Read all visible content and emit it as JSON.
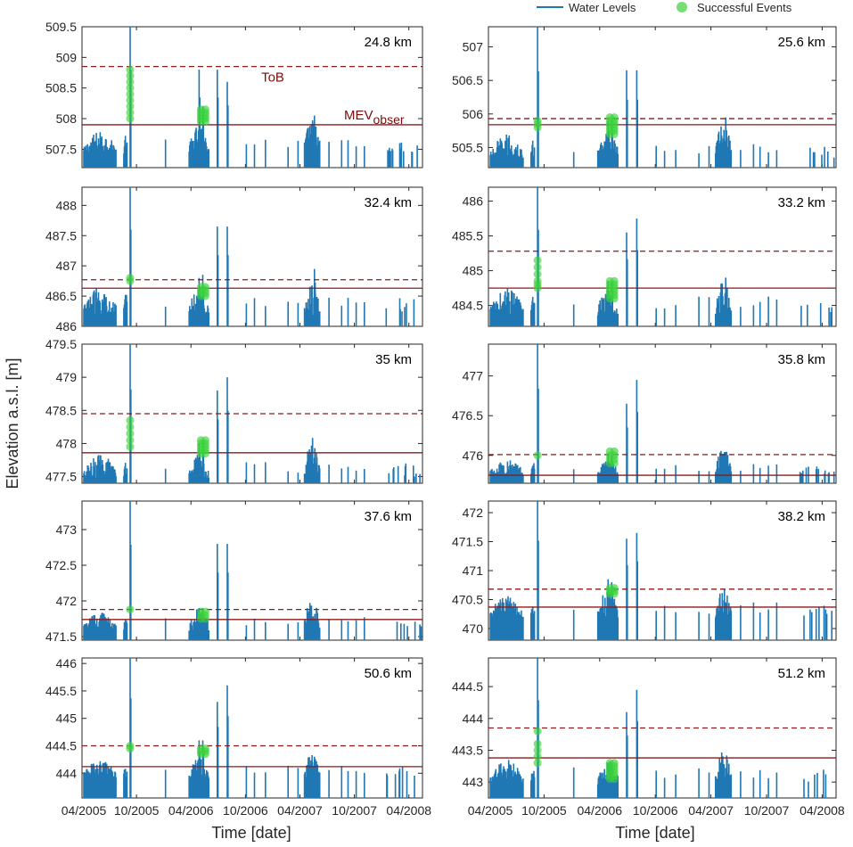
{
  "chart_data": {
    "type": "line",
    "legend": {
      "water_label": "Water Levels",
      "events_label": "Successful Events",
      "placement": "top-right"
    },
    "ylabel": "Elevation a.s.l. [m]",
    "xlabel": "Time [date]",
    "x_tick_labels": [
      "04/2005",
      "10/2005",
      "04/2006",
      "10/2006",
      "04/2007",
      "10/2007",
      "04/2008"
    ],
    "x_range_months": [
      0,
      37.5
    ],
    "annotations": {
      "tob": "ToB",
      "mev_main": "MEV",
      "mev_sub": "obser"
    },
    "colors": {
      "water": "#1f77b4",
      "events": "#3bd13b",
      "ref": "#8b1a1a"
    },
    "panels": [
      {
        "label": "24.8 km",
        "ylim": [
          507.2,
          509.5
        ],
        "yticks": [
          507.5,
          508,
          508.5,
          509,
          509.5
        ],
        "tob": 508.85,
        "mev": 507.9,
        "base_mean": 507.5,
        "base_var": 0.3,
        "mean2": 507.55,
        "var2": 0.35,
        "mean3": 507.6,
        "var3": 0.4,
        "spikes": [
          509.5,
          508.8,
          508.2,
          508.8,
          508.6,
          508.05
        ],
        "events": [
          {
            "x": 5.3,
            "y": [
              508.8,
              508.7,
              508.6,
              508.5,
              508.4,
              508.3,
              508.2,
              508.1,
              508.0
            ]
          },
          {
            "x": 13.1,
            "y": [
              508.15,
              508.1,
              508.05,
              508.0,
              507.95
            ]
          }
        ]
      },
      {
        "label": "25.6 km",
        "ylim": [
          505.2,
          507.3
        ],
        "yticks": [
          505.5,
          506,
          506.5,
          507
        ],
        "tob": 505.93,
        "mev": 505.84,
        "base_mean": 505.4,
        "base_var": 0.3,
        "mean2": 505.45,
        "var2": 0.3,
        "mean3": 505.5,
        "var3": 0.4,
        "spikes": [
          507.3,
          505.9,
          505.9,
          506.65,
          506.65,
          505.95
        ],
        "events": [
          {
            "x": 5.3,
            "y": [
              505.9,
              505.85,
              505.8
            ]
          },
          {
            "x": 13.1,
            "y": [
              505.95,
              505.9,
              505.85,
              505.8,
              505.75,
              505.7
            ]
          }
        ]
      },
      {
        "label": "32.4 km",
        "ylim": [
          486.0,
          488.3
        ],
        "yticks": [
          486,
          486.5,
          487,
          487.5,
          488
        ],
        "tob": 486.77,
        "mev": 486.63,
        "base_mean": 486.3,
        "base_var": 0.35,
        "mean2": 486.3,
        "var2": 0.4,
        "mean3": 486.3,
        "var3": 0.45,
        "spikes": [
          488.3,
          486.8,
          486.85,
          487.65,
          487.65,
          486.95
        ],
        "events": [
          {
            "x": 5.3,
            "y": [
              486.8,
              486.75
            ]
          },
          {
            "x": 13.1,
            "y": [
              486.65,
              486.6,
              486.55,
              486.5
            ]
          }
        ]
      },
      {
        "label": "33.2 km",
        "ylim": [
          484.2,
          486.2
        ],
        "yticks": [
          484.5,
          485,
          485.5,
          486
        ],
        "tob": 485.28,
        "mev": 484.75,
        "base_mean": 484.45,
        "base_var": 0.3,
        "mean2": 484.45,
        "var2": 0.35,
        "mean3": 484.45,
        "var3": 0.45,
        "spikes": [
          486.2,
          484.85,
          484.85,
          485.55,
          485.75,
          484.9
        ],
        "events": [
          {
            "x": 5.3,
            "y": [
              485.15,
              485.05,
              484.95,
              484.85,
              484.8,
              484.75
            ]
          },
          {
            "x": 13.1,
            "y": [
              484.85,
              484.8,
              484.75,
              484.7,
              484.65,
              484.6
            ]
          }
        ]
      },
      {
        "label": "35 km",
        "ylim": [
          477.4,
          479.5
        ],
        "yticks": [
          477.5,
          478,
          478.5,
          479,
          479.5
        ],
        "tob": 478.45,
        "mev": 477.86,
        "base_mean": 477.55,
        "base_var": 0.3,
        "mean2": 477.55,
        "var2": 0.3,
        "mean3": 477.6,
        "var3": 0.5,
        "spikes": [
          479.5,
          478.0,
          478.05,
          478.8,
          479.0,
          477.75
        ],
        "events": [
          {
            "x": 5.3,
            "y": [
              478.35,
              478.25,
              478.15,
              478.05,
              477.95
            ]
          },
          {
            "x": 13.1,
            "y": [
              478.05,
              478.0,
              477.95,
              477.9,
              477.85
            ]
          }
        ]
      },
      {
        "label": "35.8 km",
        "ylim": [
          475.65,
          477.4
        ],
        "yticks": [
          476,
          476.5,
          477
        ],
        "tob": 476.01,
        "mev": 475.75,
        "base_mean": 475.8,
        "base_var": 0.15,
        "mean2": 475.8,
        "var2": 0.15,
        "mean3": 475.85,
        "var3": 0.25,
        "spikes": [
          477.4,
          476.0,
          476.0,
          476.65,
          476.95,
          476.0
        ],
        "events": [
          {
            "x": 5.3,
            "y": [
              476.0
            ]
          },
          {
            "x": 13.1,
            "y": [
              476.05,
              476.0,
              475.95,
              475.9
            ]
          }
        ]
      },
      {
        "label": "37.6 km",
        "ylim": [
          471.45,
          473.4
        ],
        "yticks": [
          471.5,
          472,
          472.5,
          473
        ],
        "tob": 471.88,
        "mev": 471.74,
        "base_mean": 471.65,
        "base_var": 0.2,
        "mean2": 471.65,
        "var2": 0.25,
        "mean3": 471.7,
        "var3": 0.35,
        "spikes": [
          473.4,
          471.9,
          471.9,
          472.8,
          472.8,
          471.75
        ],
        "events": [
          {
            "x": 5.3,
            "y": [
              471.88
            ]
          },
          {
            "x": 13.1,
            "y": [
              471.85,
              471.8,
              471.75
            ]
          }
        ]
      },
      {
        "label": "38.2 km",
        "ylim": [
          469.8,
          472.2
        ],
        "yticks": [
          470,
          470.5,
          471,
          471.5,
          472
        ],
        "tob": 470.68,
        "mev": 470.37,
        "base_mean": 470.25,
        "base_var": 0.35,
        "mean2": 470.3,
        "var2": 0.4,
        "mean3": 470.3,
        "var3": 0.45,
        "spikes": [
          472.2,
          470.85,
          470.8,
          471.55,
          471.65,
          470.45
        ],
        "events": [
          {
            "x": 13.1,
            "y": [
              470.7,
              470.65,
              470.6
            ]
          }
        ]
      },
      {
        "label": "50.6 km",
        "ylim": [
          443.55,
          446.1
        ],
        "yticks": [
          444,
          444.5,
          445,
          445.5,
          446
        ],
        "tob": 444.5,
        "mev": 444.12,
        "base_mean": 444.0,
        "base_var": 0.25,
        "mean2": 444.0,
        "var2": 0.3,
        "mean3": 444.0,
        "var3": 0.4,
        "spikes": [
          446.1,
          444.6,
          444.6,
          445.3,
          445.6,
          444.3
        ],
        "events": [
          {
            "x": 5.3,
            "y": [
              444.5,
              444.45
            ]
          },
          {
            "x": 13.1,
            "y": [
              444.45,
              444.4,
              444.35
            ]
          }
        ]
      },
      {
        "label": "51.2 km",
        "ylim": [
          442.75,
          444.95
        ],
        "yticks": [
          443,
          443.5,
          444,
          444.5
        ],
        "tob": 443.85,
        "mev": 443.38,
        "base_mean": 443.05,
        "base_var": 0.3,
        "mean2": 443.05,
        "var2": 0.3,
        "mean3": 443.1,
        "var3": 0.45,
        "spikes": [
          444.95,
          443.3,
          443.3,
          444.1,
          444.45,
          443.15
        ],
        "events": [
          {
            "x": 5.3,
            "y": [
              443.8,
              443.6,
              443.5,
              443.4,
              443.3
            ]
          },
          {
            "x": 13.1,
            "y": [
              443.3,
              443.25,
              443.2,
              443.15,
              443.1,
              443.05
            ]
          }
        ]
      }
    ]
  }
}
